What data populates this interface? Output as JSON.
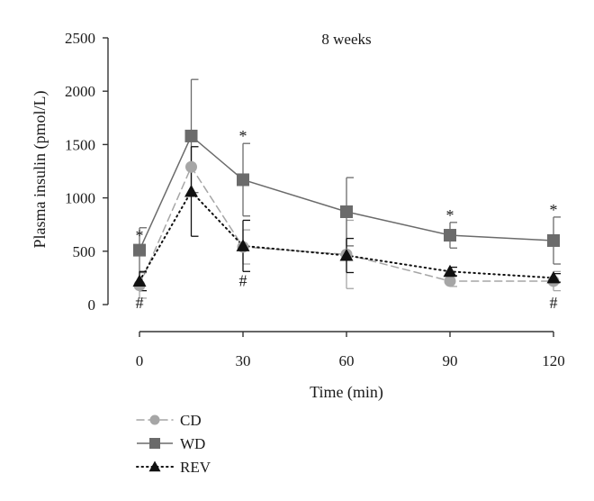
{
  "chart_data": {
    "type": "line",
    "title": "8 weeks",
    "xlabel": "Time (min)",
    "ylabel": "Plasma insulin (pmol/L)",
    "xlim": [
      0,
      120
    ],
    "ylim": [
      0,
      2500
    ],
    "xticks": [
      0,
      30,
      60,
      90,
      120
    ],
    "yticks": [
      0,
      500,
      1000,
      1500,
      2000,
      2500
    ],
    "grid": false,
    "legend_position": "bottom-left",
    "x": [
      0,
      15,
      30,
      60,
      90,
      120
    ],
    "series": [
      {
        "name": "CD",
        "marker": "circle",
        "line_style": "dashed",
        "color": "#a6a6a6",
        "values": [
          180,
          1290,
          540,
          470,
          220,
          220
        ],
        "error": [
          120,
          0,
          160,
          320,
          50,
          90
        ]
      },
      {
        "name": "WD",
        "marker": "square",
        "line_style": "solid",
        "color": "#6b6b6b",
        "values": [
          510,
          1580,
          1170,
          870,
          650,
          600
        ],
        "error": [
          210,
          530,
          340,
          320,
          120,
          220
        ]
      },
      {
        "name": "REV",
        "marker": "triangle",
        "line_style": "dotted",
        "color": "#111111",
        "values": [
          220,
          1060,
          550,
          460,
          310,
          250
        ],
        "error": [
          90,
          420,
          240,
          160,
          40,
          40
        ]
      }
    ],
    "annotations": [
      {
        "text": "*",
        "x": 0,
        "y": 580,
        "placement": "above"
      },
      {
        "text": "*",
        "x": 30,
        "y": 1510,
        "placement": "above"
      },
      {
        "text": "*",
        "x": 90,
        "y": 770,
        "placement": "above"
      },
      {
        "text": "*",
        "x": 120,
        "y": 820,
        "placement": "above"
      },
      {
        "text": "#",
        "x": 0,
        "y": 100,
        "placement": "below"
      },
      {
        "text": "#",
        "x": 30,
        "y": 310,
        "placement": "below"
      },
      {
        "text": "#",
        "x": 120,
        "y": 100,
        "placement": "below"
      }
    ]
  }
}
